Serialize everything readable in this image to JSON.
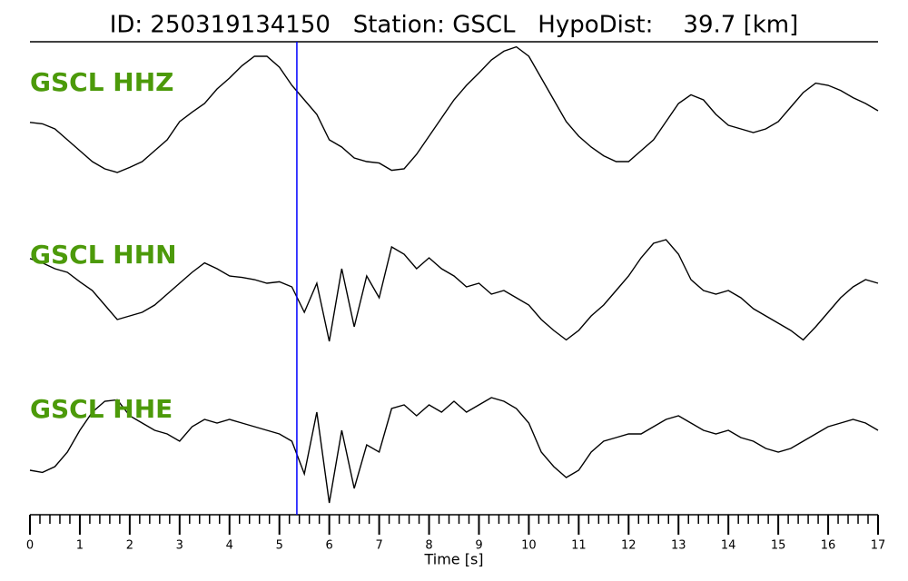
{
  "chart_data": {
    "type": "line",
    "title": "ID: 250319134150   Station: GSCL   HypoDist:    39.7 [km]",
    "xlabel": "Time [s]",
    "xlim": [
      0,
      17
    ],
    "xticks": [
      0,
      1,
      2,
      3,
      4,
      5,
      6,
      7,
      8,
      9,
      10,
      11,
      12,
      13,
      14,
      15,
      16,
      17
    ],
    "xminor_ticks": [
      0.2,
      0.4,
      0.6,
      0.8,
      1.2,
      1.4,
      1.6,
      1.8,
      2.2,
      2.4,
      2.6,
      2.8,
      3.2,
      3.4,
      3.6,
      3.8,
      4.2,
      4.4,
      4.6,
      4.8,
      5.2,
      5.4,
      5.6,
      5.8,
      6.2,
      6.4,
      6.6,
      6.8,
      7.2,
      7.4,
      7.6,
      7.8,
      8.2,
      8.4,
      8.6,
      8.8,
      9.2,
      9.4,
      9.6,
      9.8,
      10.2,
      10.4,
      10.6,
      10.8,
      11.2,
      11.4,
      11.6,
      11.8,
      12.2,
      12.4,
      12.6,
      12.8,
      13.2,
      13.4,
      13.6,
      13.8,
      14.2,
      14.4,
      14.6,
      14.8,
      15.2,
      15.4,
      15.6,
      15.8,
      16.2,
      16.4,
      16.6,
      16.8
    ],
    "ylim": [
      -1,
      1
    ],
    "pick": {
      "time": 5.35,
      "color": "#0000ff"
    },
    "label_color": "#4c9a0a",
    "x": [
      0,
      0.25,
      0.5,
      0.75,
      1,
      1.25,
      1.5,
      1.75,
      2,
      2.25,
      2.5,
      2.75,
      3,
      3.25,
      3.5,
      3.75,
      4,
      4.25,
      4.5,
      4.75,
      5,
      5.25,
      5.5,
      5.75,
      6,
      6.25,
      6.5,
      6.75,
      7,
      7.25,
      7.5,
      7.75,
      8,
      8.25,
      8.5,
      8.75,
      9,
      9.25,
      9.5,
      9.75,
      10,
      10.25,
      10.5,
      10.75,
      11,
      11.25,
      11.5,
      11.75,
      12,
      12.25,
      12.5,
      12.75,
      13,
      13.25,
      13.5,
      13.75,
      14,
      14.25,
      14.5,
      14.75,
      15,
      15.25,
      15.5,
      15.75,
      16,
      16.25,
      16.5,
      16.75,
      17
    ],
    "series": [
      {
        "name": "GSCL HHZ",
        "color": "#000000",
        "values": [
          -0.06,
          -0.08,
          -0.15,
          -0.3,
          -0.45,
          -0.6,
          -0.7,
          -0.75,
          -0.68,
          -0.6,
          -0.45,
          -0.3,
          -0.05,
          0.08,
          0.2,
          0.4,
          0.55,
          0.72,
          0.85,
          0.85,
          0.7,
          0.45,
          0.25,
          0.05,
          -0.3,
          -0.4,
          -0.55,
          -0.6,
          -0.62,
          -0.72,
          -0.7,
          -0.5,
          -0.25,
          0.0,
          0.25,
          0.45,
          0.62,
          0.8,
          0.92,
          0.98,
          0.85,
          0.55,
          0.25,
          -0.05,
          -0.25,
          -0.4,
          -0.52,
          -0.6,
          -0.6,
          -0.45,
          -0.3,
          -0.05,
          0.2,
          0.32,
          0.25,
          0.05,
          -0.1,
          -0.15,
          -0.2,
          -0.15,
          -0.05,
          0.15,
          0.35,
          0.48,
          0.45,
          0.38,
          0.28,
          0.2,
          0.1
        ]
      },
      {
        "name": "GSCL HHN",
        "color": "#000000",
        "values": [
          0.44,
          0.38,
          0.3,
          0.25,
          0.12,
          0.0,
          -0.2,
          -0.4,
          -0.35,
          -0.3,
          -0.2,
          -0.05,
          0.1,
          0.25,
          0.38,
          0.3,
          0.2,
          0.18,
          0.15,
          0.1,
          0.12,
          0.05,
          -0.3,
          0.1,
          -0.7,
          0.3,
          -0.5,
          0.2,
          -0.1,
          0.6,
          0.5,
          0.3,
          0.45,
          0.3,
          0.2,
          0.05,
          0.1,
          -0.05,
          0.0,
          -0.1,
          -0.2,
          -0.4,
          -0.55,
          -0.68,
          -0.55,
          -0.35,
          -0.2,
          0.0,
          0.2,
          0.45,
          0.65,
          0.7,
          0.5,
          0.15,
          0.0,
          -0.05,
          0.0,
          -0.1,
          -0.25,
          -0.35,
          -0.45,
          -0.55,
          -0.68,
          -0.5,
          -0.3,
          -0.1,
          0.05,
          0.15,
          0.1
        ]
      },
      {
        "name": "GSCL HHE",
        "color": "#000000",
        "values": [
          -0.35,
          -0.38,
          -0.3,
          -0.1,
          0.2,
          0.45,
          0.6,
          0.62,
          0.4,
          0.3,
          0.2,
          0.15,
          0.05,
          0.25,
          0.35,
          0.3,
          0.35,
          0.3,
          0.25,
          0.2,
          0.15,
          0.05,
          -0.4,
          0.45,
          -0.8,
          0.2,
          -0.6,
          0.0,
          -0.1,
          0.5,
          0.55,
          0.4,
          0.55,
          0.45,
          0.6,
          0.45,
          0.55,
          0.65,
          0.6,
          0.5,
          0.3,
          -0.1,
          -0.3,
          -0.45,
          -0.35,
          -0.1,
          0.05,
          0.1,
          0.15,
          0.15,
          0.25,
          0.35,
          0.4,
          0.3,
          0.2,
          0.15,
          0.2,
          0.1,
          0.05,
          -0.05,
          -0.1,
          -0.05,
          0.05,
          0.15,
          0.25,
          0.3,
          0.35,
          0.3,
          0.2
        ]
      }
    ]
  }
}
